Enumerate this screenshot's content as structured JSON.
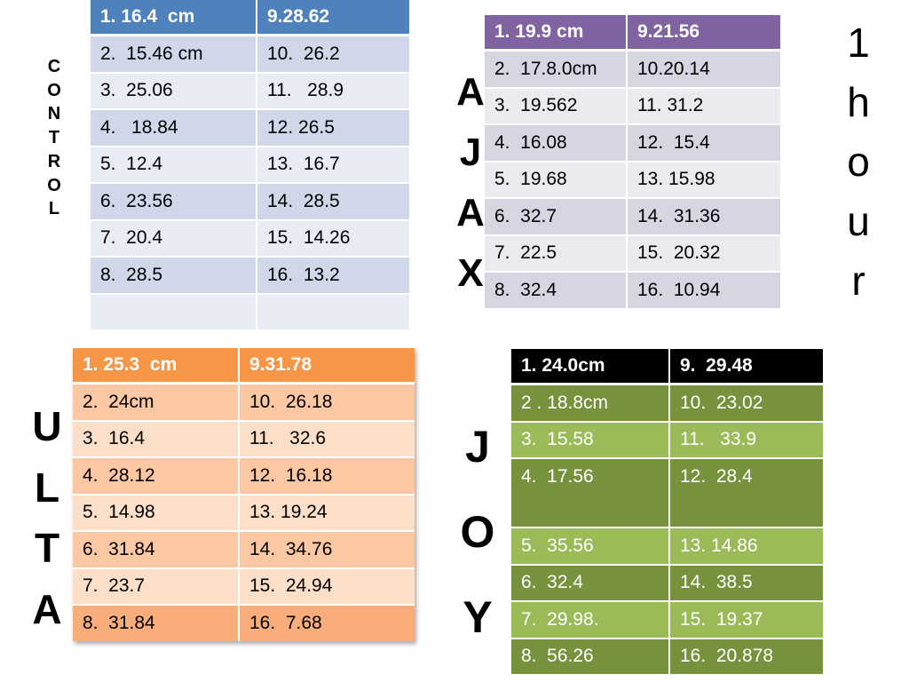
{
  "control": {
    "label_letters": [
      "C",
      "O",
      "N",
      "T",
      "R",
      "O",
      "L"
    ],
    "header": [
      "1. 16.4  cm",
      "9.28.62"
    ],
    "rows": [
      [
        "2.  15.46 cm",
        "10.  26.2"
      ],
      [
        "3.  25.06",
        "11.   28.9"
      ],
      [
        "4.   18.84",
        "12. 26.5"
      ],
      [
        "5.  12.4",
        "13.  16.7"
      ],
      [
        "6.  23.56",
        "14.  28.5"
      ],
      [
        "7.  20.4",
        "15.  14.26"
      ],
      [
        "8.  28.5",
        "16.  13.2"
      ],
      [
        "",
        ""
      ]
    ]
  },
  "ajax": {
    "label_letters": [
      "A",
      "J",
      "A",
      "X"
    ],
    "header": [
      "1. 19.9 cm",
      "9.21.56"
    ],
    "rows": [
      [
        "2.  17.8.0cm",
        "10.20.14"
      ],
      [
        "3.  19.562",
        "11. 31.2"
      ],
      [
        "4.  16.08",
        "12.  15.4"
      ],
      [
        "5.  19.68",
        "13. 15.98"
      ],
      [
        "6.  32.7",
        "14.  31.36"
      ],
      [
        "7.  22.5",
        "15.  20.32"
      ],
      [
        "8.  32.4",
        "16.  10.94"
      ]
    ]
  },
  "ulta": {
    "label_letters": [
      "U",
      "L",
      "T",
      "A"
    ],
    "header": [
      "1. 25.3  cm",
      "9.31.78"
    ],
    "rows": [
      [
        "2.  24cm",
        "10.  26.18"
      ],
      [
        "3.  16.4",
        "11.   32.6"
      ],
      [
        "4.  28.12",
        "12.  16.18"
      ],
      [
        "5.  14.98",
        "13. 19.24"
      ],
      [
        "6.  31.84",
        "14.  34.76"
      ],
      [
        "7.  23.7",
        "15.  24.94"
      ],
      [
        "8.  31.84",
        "16.  7.68"
      ]
    ]
  },
  "joy": {
    "label_letters": [
      "J",
      "O",
      "Y"
    ],
    "header": [
      "1. 24.0cm",
      "9.  29.48"
    ],
    "rows": [
      [
        "2 . 18.8cm",
        "10.  23.02"
      ],
      [
        "3.  15.58",
        "11.   33.9"
      ],
      [
        "4.  17.56",
        "12.  28.4"
      ],
      [
        "5.  35.56",
        "13. 14.86"
      ],
      [
        "6.  32.4",
        "14.  38.5"
      ],
      [
        "7.  29.98.",
        "15.  19.37"
      ],
      [
        "8.  56.26",
        "16.  20.878"
      ]
    ]
  },
  "time_label_letters": [
    "1",
    "h",
    "o",
    "u",
    "r"
  ],
  "colors": {
    "control_header": "#4f81bd",
    "ajax_header": "#8064a2",
    "ulta_header": "#f79646",
    "joy_header": "#000000",
    "joy_green_dark": "#76923c",
    "joy_green_light": "#9bbb59"
  }
}
